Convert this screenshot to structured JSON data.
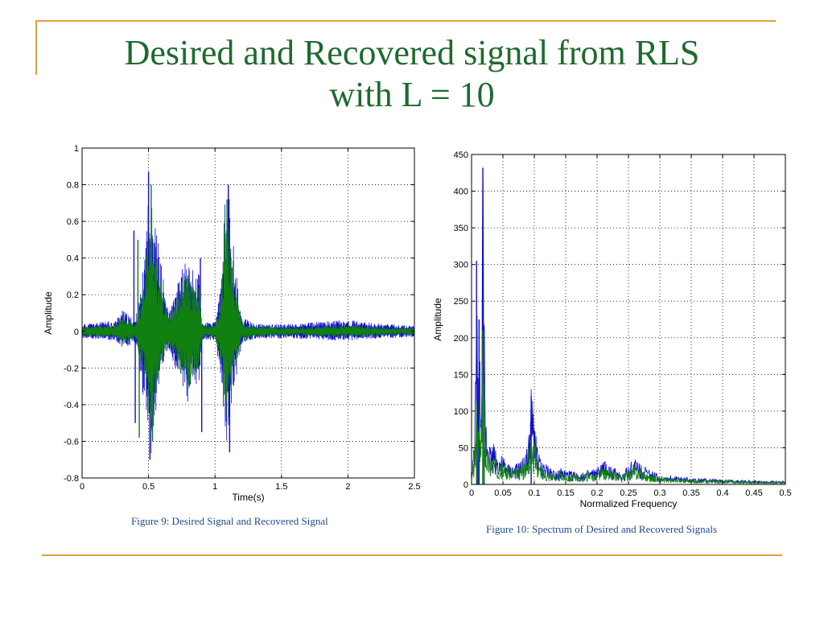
{
  "title": {
    "line1": "Desired and Recovered signal from RLS",
    "line2": "with L = 10"
  },
  "colors": {
    "title": "#1f6a2e",
    "frame": "#e2a33a",
    "desired": "#1010c8",
    "recovered": "#108010",
    "caption": "#1f4a8a"
  },
  "figure9": {
    "caption": "Figure 9: Desired Signal and Recovered Signal"
  },
  "figure10": {
    "caption": "Figure 10: Spectrum of Desired and Recovered Signals"
  },
  "chart_data": [
    {
      "type": "line",
      "xlabel": "Time(s)",
      "ylabel": "Amplitude",
      "xlim": [
        0,
        2.5
      ],
      "ylim": [
        -0.8,
        1
      ],
      "xticks": [
        0,
        0.5,
        1,
        1.5,
        2,
        2.5
      ],
      "xtick_labels": [
        "0",
        "0.5",
        "1",
        "1.5",
        "2",
        "2.5"
      ],
      "yticks": [
        -0.8,
        -0.6,
        -0.4,
        -0.2,
        0,
        0.2,
        0.4,
        0.6,
        0.8,
        1
      ],
      "ytick_labels": [
        "-0.8",
        "-0.6",
        "-0.4",
        "-0.2",
        "0",
        "0.2",
        "0.4",
        "0.6",
        "0.8",
        "1"
      ],
      "grid": true,
      "series": [
        {
          "color": "#1010c8",
          "envelope_x": [
            0,
            0.25,
            0.3,
            0.4,
            0.45,
            0.5,
            0.52,
            0.55,
            0.6,
            0.65,
            0.7,
            0.75,
            0.8,
            0.85,
            0.88,
            0.9,
            0.95,
            1.0,
            1.05,
            1.08,
            1.1,
            1.15,
            1.2,
            1.3,
            1.6,
            1.9,
            2.05,
            2.1,
            2.3,
            2.5
          ],
          "envelope_upper": [
            0.04,
            0.06,
            0.12,
            0.06,
            0.25,
            0.75,
            0.87,
            0.6,
            0.35,
            0.1,
            0.2,
            0.35,
            0.4,
            0.3,
            0.35,
            0.05,
            0.05,
            0.05,
            0.3,
            0.8,
            0.78,
            0.4,
            0.08,
            0.04,
            0.04,
            0.06,
            0.06,
            0.05,
            0.04,
            0.03
          ],
          "envelope_lower": [
            -0.04,
            -0.05,
            -0.1,
            -0.06,
            -0.3,
            -0.6,
            -0.7,
            -0.5,
            -0.2,
            -0.1,
            -0.2,
            -0.3,
            -0.4,
            -0.3,
            -0.3,
            -0.05,
            -0.05,
            -0.05,
            -0.3,
            -0.66,
            -0.55,
            -0.3,
            -0.07,
            -0.04,
            -0.04,
            -0.05,
            -0.05,
            -0.04,
            -0.04,
            -0.03
          ],
          "spikes": [
            {
              "x": 0.39,
              "y": 0.55
            },
            {
              "x": 0.4,
              "y": -0.5
            },
            {
              "x": 0.5,
              "y": 0.87
            },
            {
              "x": 0.51,
              "y": -0.7
            },
            {
              "x": 0.89,
              "y": 0.4
            },
            {
              "x": 0.9,
              "y": -0.55
            },
            {
              "x": 1.1,
              "y": 0.8
            },
            {
              "x": 1.11,
              "y": -0.66
            }
          ]
        },
        {
          "color": "#108010",
          "envelope_x": [
            0,
            0.25,
            0.3,
            0.4,
            0.45,
            0.5,
            0.52,
            0.55,
            0.6,
            0.65,
            0.7,
            0.75,
            0.8,
            0.85,
            0.88,
            0.9,
            0.95,
            1.0,
            1.05,
            1.08,
            1.1,
            1.15,
            1.2,
            1.3,
            1.6,
            1.9,
            2.05,
            2.1,
            2.3,
            2.5
          ],
          "envelope_upper": [
            0.03,
            0.04,
            0.08,
            0.04,
            0.18,
            0.55,
            0.8,
            0.45,
            0.25,
            0.08,
            0.15,
            0.28,
            0.32,
            0.22,
            0.3,
            0.04,
            0.03,
            0.04,
            0.22,
            0.72,
            0.6,
            0.3,
            0.05,
            0.03,
            0.02,
            0.03,
            0.04,
            0.03,
            0.02,
            0.02
          ],
          "envelope_lower": [
            -0.03,
            -0.03,
            -0.07,
            -0.04,
            -0.22,
            -0.45,
            -0.6,
            -0.38,
            -0.15,
            -0.08,
            -0.15,
            -0.25,
            -0.32,
            -0.22,
            -0.25,
            -0.04,
            -0.03,
            -0.04,
            -0.22,
            -0.55,
            -0.4,
            -0.22,
            -0.05,
            -0.03,
            -0.02,
            -0.03,
            -0.03,
            -0.03,
            -0.02,
            -0.02
          ],
          "spikes": [
            {
              "x": 0.42,
              "y": 0.5
            },
            {
              "x": 0.43,
              "y": -0.58
            },
            {
              "x": 0.52,
              "y": 0.8
            },
            {
              "x": 0.53,
              "y": -0.6
            },
            {
              "x": 1.09,
              "y": 0.72
            }
          ]
        }
      ]
    },
    {
      "type": "line",
      "xlabel": "Normalized Frequency",
      "ylabel": "Amplitude",
      "xlim": [
        0,
        0.5
      ],
      "ylim": [
        0,
        450
      ],
      "xticks": [
        0,
        0.05,
        0.1,
        0.15,
        0.2,
        0.25,
        0.3,
        0.35,
        0.4,
        0.45,
        0.5
      ],
      "xtick_labels": [
        "0",
        "0.05",
        "0.1",
        "0.15",
        "0.2",
        "0.25",
        "0.3",
        "0.35",
        "0.4",
        "0.45",
        "0.5"
      ],
      "yticks": [
        0,
        50,
        100,
        150,
        200,
        250,
        300,
        350,
        400,
        450
      ],
      "ytick_labels": [
        "0",
        "50",
        "100",
        "150",
        "200",
        "250",
        "300",
        "350",
        "400",
        "450"
      ],
      "grid": true,
      "series": [
        {
          "color": "#1010c8",
          "x": [
            0,
            0.005,
            0.008,
            0.01,
            0.012,
            0.015,
            0.018,
            0.02,
            0.022,
            0.025,
            0.03,
            0.035,
            0.04,
            0.05,
            0.06,
            0.07,
            0.08,
            0.09,
            0.095,
            0.1,
            0.105,
            0.11,
            0.12,
            0.13,
            0.14,
            0.15,
            0.17,
            0.2,
            0.21,
            0.22,
            0.24,
            0.25,
            0.26,
            0.27,
            0.28,
            0.3,
            0.33,
            0.36,
            0.4,
            0.45,
            0.5
          ],
          "y": [
            10,
            60,
            305,
            120,
            225,
            90,
            432,
            215,
            100,
            80,
            50,
            55,
            40,
            35,
            25,
            25,
            30,
            50,
            120,
            90,
            50,
            30,
            25,
            20,
            20,
            18,
            15,
            20,
            30,
            25,
            15,
            25,
            35,
            30,
            20,
            12,
            10,
            8,
            6,
            5,
            4
          ]
        },
        {
          "color": "#108010",
          "x": [
            0,
            0.005,
            0.008,
            0.01,
            0.012,
            0.015,
            0.018,
            0.02,
            0.022,
            0.025,
            0.03,
            0.035,
            0.04,
            0.05,
            0.06,
            0.07,
            0.08,
            0.09,
            0.095,
            0.1,
            0.105,
            0.11,
            0.12,
            0.13,
            0.14,
            0.15,
            0.17,
            0.2,
            0.21,
            0.22,
            0.24,
            0.25,
            0.26,
            0.27,
            0.28,
            0.3,
            0.33,
            0.36,
            0.4,
            0.45,
            0.5
          ],
          "y": [
            8,
            45,
            110,
            60,
            100,
            50,
            210,
            120,
            60,
            50,
            35,
            40,
            30,
            25,
            20,
            20,
            22,
            35,
            65,
            55,
            35,
            22,
            18,
            15,
            15,
            14,
            12,
            15,
            22,
            18,
            12,
            18,
            25,
            20,
            14,
            9,
            7,
            6,
            5,
            4,
            3
          ]
        }
      ]
    }
  ]
}
